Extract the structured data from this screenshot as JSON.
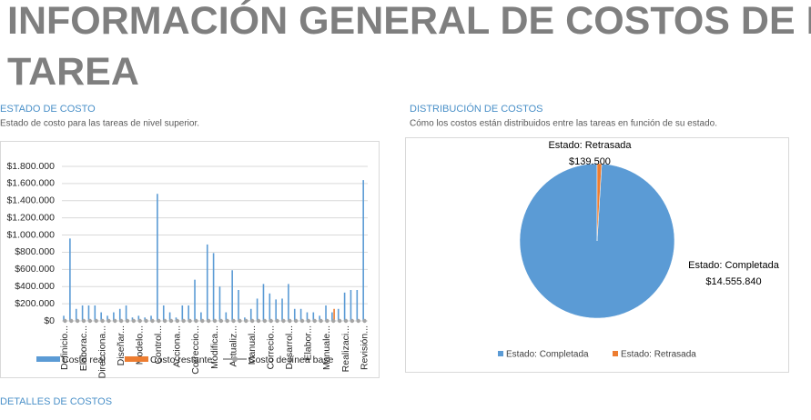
{
  "header": {
    "title": "INFORMACIÓN GENERAL DE COSTOS DE LA TAREA"
  },
  "details_heading": "DETALLES DE COSTOS",
  "chart_data": [
    {
      "type": "bar",
      "title": "ESTADO DE COSTO",
      "subtitle": "Estado de costo para las tareas de nivel superior.",
      "categories": [
        "Definicio...",
        null,
        null,
        "Elaborac...",
        null,
        null,
        "Direcciona...",
        null,
        null,
        "Diseñar...",
        null,
        null,
        "Modelo...",
        null,
        null,
        "Control...",
        null,
        null,
        "Acciona...",
        null,
        null,
        "Correccio...",
        null,
        null,
        "Modifica...",
        null,
        null,
        "Actualiz...",
        null,
        null,
        "Manual...",
        null,
        null,
        "Correcio...",
        null,
        null,
        "Desarrol...",
        null,
        null,
        "Elabor...",
        null,
        null,
        "Manuale...",
        null,
        null,
        "Realizaci...",
        null,
        null,
        "Revisión..."
      ],
      "series": [
        {
          "name": "Costo real",
          "color": "#5b9bd5",
          "values": [
            60000,
            960000,
            140000,
            180000,
            180000,
            180000,
            100000,
            60000,
            100000,
            140000,
            180000,
            40000,
            60000,
            40000,
            60000,
            1480000,
            180000,
            100000,
            40000,
            180000,
            180000,
            480000,
            100000,
            890000,
            790000,
            400000,
            100000,
            590000,
            360000,
            40000,
            140000,
            260000,
            430000,
            320000,
            250000,
            260000,
            430000,
            140000,
            140000,
            100000,
            100000,
            60000,
            180000,
            100000,
            140000,
            330000,
            360000,
            360000,
            1640000
          ]
        },
        {
          "name": "Costo restante",
          "color": "#ed7d31",
          "values": [
            0,
            0,
            0,
            0,
            0,
            0,
            0,
            0,
            0,
            0,
            0,
            0,
            0,
            0,
            0,
            0,
            0,
            0,
            0,
            0,
            0,
            0,
            0,
            0,
            0,
            0,
            0,
            0,
            0,
            0,
            0,
            0,
            0,
            0,
            0,
            0,
            0,
            0,
            0,
            0,
            0,
            0,
            0,
            140000,
            0,
            0,
            0,
            0,
            0
          ]
        },
        {
          "name": "Costo de línea base",
          "color": "#a5a5a5",
          "values": [
            0,
            0,
            0,
            0,
            0,
            0,
            0,
            0,
            0,
            0,
            0,
            0,
            0,
            0,
            0,
            0,
            0,
            0,
            0,
            0,
            0,
            0,
            0,
            0,
            0,
            0,
            0,
            0,
            0,
            0,
            0,
            0,
            0,
            0,
            0,
            0,
            0,
            0,
            0,
            0,
            0,
            0,
            0,
            0,
            0,
            0,
            0,
            0,
            0
          ]
        }
      ],
      "ylim": [
        0,
        1800000
      ],
      "yticks": [
        {
          "value": 0,
          "label": "$0"
        },
        {
          "value": 200000,
          "label": "$200.000"
        },
        {
          "value": 400000,
          "label": "$400.000"
        },
        {
          "value": 600000,
          "label": "$600.000"
        },
        {
          "value": 800000,
          "label": "$800.000"
        },
        {
          "value": 1000000,
          "label": "$1.000.000"
        },
        {
          "value": 1200000,
          "label": "$1.200.000"
        },
        {
          "value": 1400000,
          "label": "$1.400.000"
        },
        {
          "value": 1600000,
          "label": "$1.600.000"
        },
        {
          "value": 1800000,
          "label": "$1.800.000"
        }
      ],
      "grid": true,
      "legend": "bottom"
    },
    {
      "type": "pie",
      "title": "DISTRIBUCIÓN DE COSTOS",
      "subtitle": "Cómo los costos están distribuidos entre las tareas en función de su estado.",
      "categories": [
        "Estado: Completada",
        "Estado: Retrasada"
      ],
      "values": [
        14555840,
        139500
      ],
      "value_labels": [
        "$14.555.840",
        "$139.500"
      ],
      "colors": [
        "#5b9bd5",
        "#ed7d31"
      ],
      "legend": "bottom"
    }
  ]
}
